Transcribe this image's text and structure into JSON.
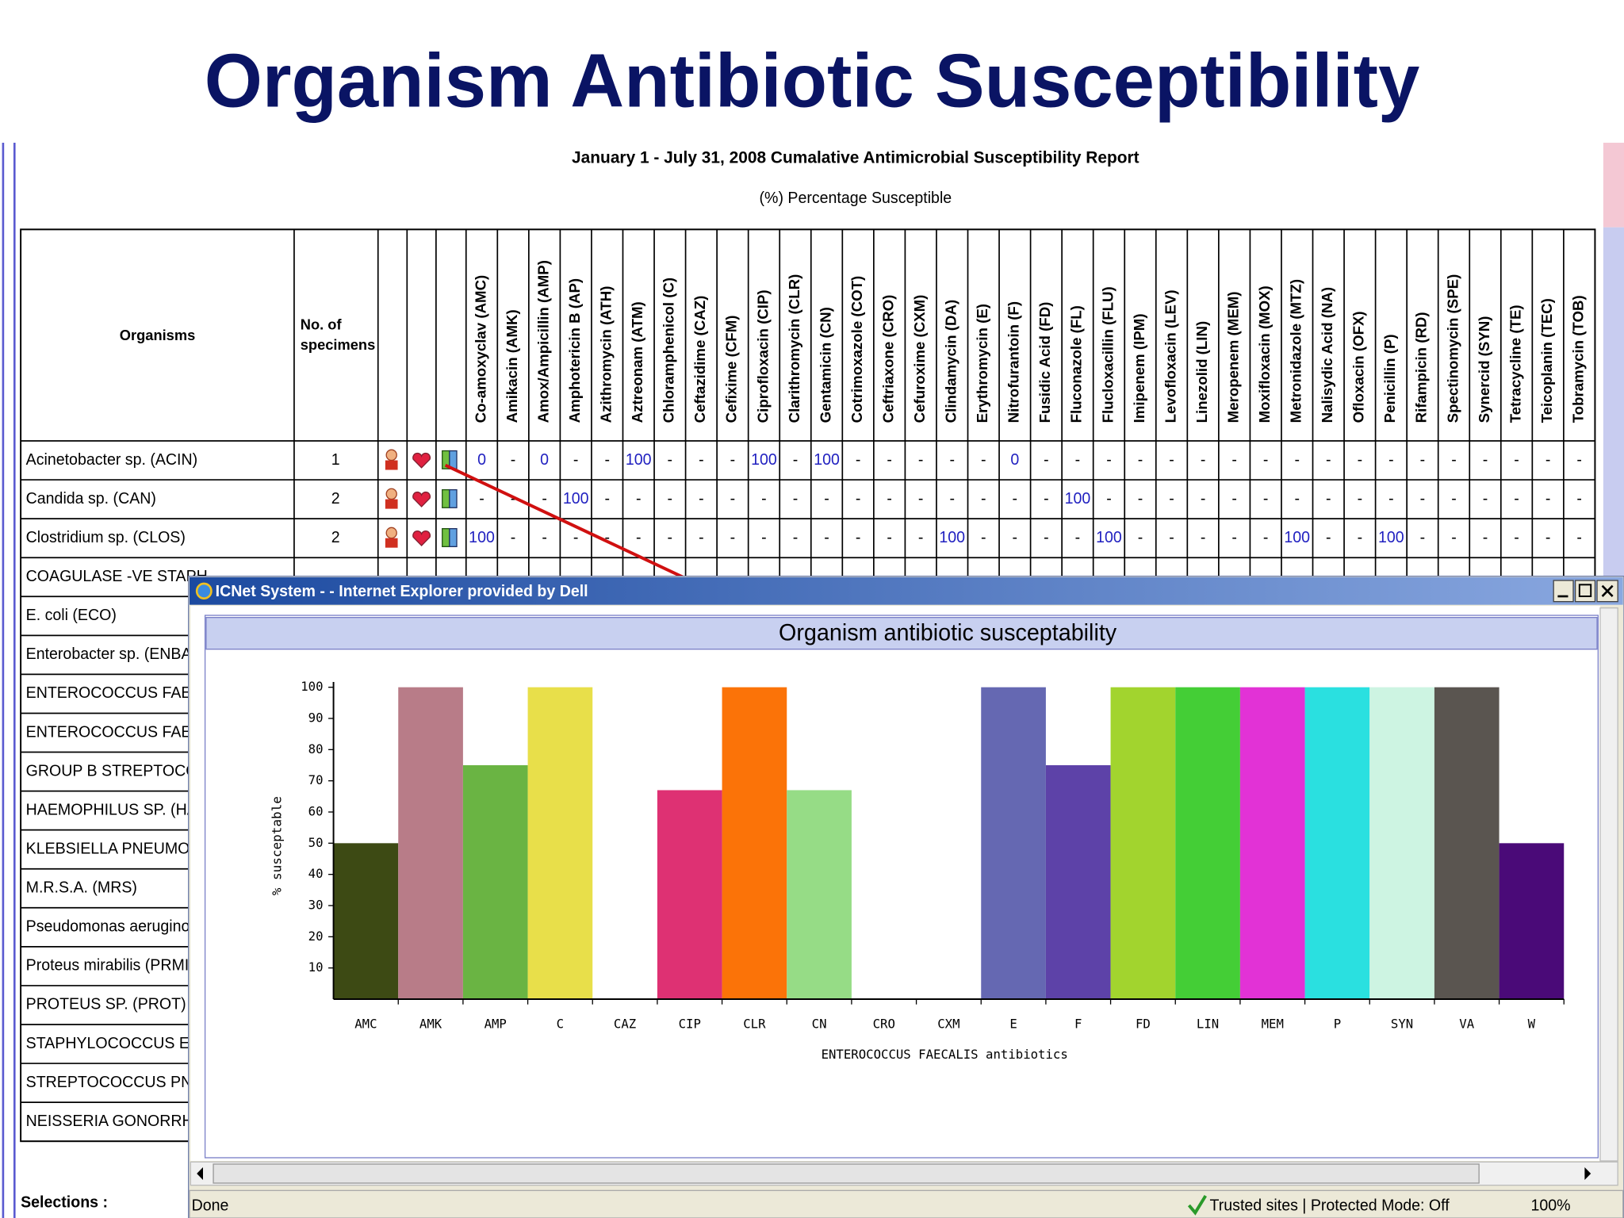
{
  "slide_title": "Organism Antibiotic Susceptibility",
  "report": {
    "title": "January 1 - July 31, 2008 Cumalative Antimicrobial Susceptibility Report",
    "subtitle": "(%) Percentage Susceptible",
    "table": {
      "organisms_header": "Organisms",
      "specimens_header": [
        "No. of",
        "specimens"
      ],
      "antibiotics": [
        "Co-amoxyclav (AMC)",
        "Amikacin (AMK)",
        "Amox/Ampicillin (AMP)",
        "Amphotericin B (AP)",
        "Azithromycin (ATH)",
        "Aztreonam (ATM)",
        "Chloramphenicol (C)",
        "Ceftazidime (CAZ)",
        "Cefixime (CFM)",
        "Ciprofloxacin (CIP)",
        "Clarithromycin (CLR)",
        "Gentamicin (CN)",
        "Cotrimoxazole (COT)",
        "Ceftriaxone (CRO)",
        "Cefuroxime (CXM)",
        "Clindamycin (DA)",
        "Erythromycin (E)",
        "Nitrofurantoin (F)",
        "Fusidic Acid (FD)",
        "Fluconazole (FL)",
        "Flucloxacillin (FLU)",
        "Imipenem (IPM)",
        "Levofloxacin (LEV)",
        "Linezolid (LIN)",
        "Meropenem (MEM)",
        "Moxifloxacin (MOX)",
        "Metronidazole (MTZ)",
        "Nalisydic Acid (NA)",
        "Ofloxacin (OFX)",
        "Penicillin (P)",
        "Rifampicin (RD)",
        "Spectinomycin (SPE)",
        "Synercid (SYN)",
        "Tetracycline (TE)",
        "Teicoplanin (TEC)",
        "Tobramycin (TOB)"
      ],
      "rows": [
        {
          "organism": "Acinetobacter sp. (ACIN)",
          "specimens": 1,
          "values": [
            0,
            "-",
            0,
            "-",
            "-",
            100,
            "-",
            "-",
            "-",
            100,
            "-",
            100,
            "-",
            "-",
            "-",
            "-",
            "-",
            0,
            "-",
            "-",
            "-",
            "-",
            "-",
            "-",
            "-",
            "-",
            "-",
            "-",
            "-",
            "-",
            "-",
            "-",
            "-",
            "-",
            "-",
            "-"
          ]
        },
        {
          "organism": "Candida sp. (CAN)",
          "specimens": 2,
          "values": [
            "-",
            "-",
            "-",
            100,
            "-",
            "-",
            "-",
            "-",
            "-",
            "-",
            "-",
            "-",
            "-",
            "-",
            "-",
            "-",
            "-",
            "-",
            "-",
            100,
            "-",
            "-",
            "-",
            "-",
            "-",
            "-",
            "-",
            "-",
            "-",
            "-",
            "-",
            "-",
            "-",
            "-",
            "-",
            "-"
          ]
        },
        {
          "organism": "Clostridium sp. (CLOS)",
          "specimens": 2,
          "values": [
            100,
            "-",
            "-",
            "-",
            "-",
            "-",
            "-",
            "-",
            "-",
            "-",
            "-",
            "-",
            "-",
            "-",
            "-",
            100,
            "-",
            "-",
            "-",
            "-",
            100,
            "-",
            "-",
            "-",
            "-",
            "-",
            100,
            "-",
            "-",
            100,
            "-",
            "-",
            "-",
            "-",
            "-",
            "-"
          ]
        },
        {
          "organism": "COAGULASE -VE STAPH"
        },
        {
          "organism": "E. coli (ECO)"
        },
        {
          "organism": "Enterobacter sp. (ENBA)"
        },
        {
          "organism": "ENTEROCOCCUS FAECA"
        },
        {
          "organism": "ENTEROCOCCUS FAECI"
        },
        {
          "organism": "GROUP B STREPTOCOC"
        },
        {
          "organism": "HAEMOPHILUS SP. (HAE"
        },
        {
          "organism": "KLEBSIELLA PNEUMONI"
        },
        {
          "organism": "M.R.S.A. (MRS)"
        },
        {
          "organism": "Pseudomonas aeruginosa"
        },
        {
          "organism": "Proteus mirabilis (PRMI)"
        },
        {
          "organism": "PROTEUS SP. (PROT)"
        },
        {
          "organism": "STAPHYLOCOCCUS EPID"
        },
        {
          "organism": "STREPTOCOCCUS PNEU"
        },
        {
          "organism": "NEISSERIA GONORRHO"
        }
      ]
    },
    "selections_label": "Selections :"
  },
  "window": {
    "title": "ICNet System - - Internet Explorer provided by Dell",
    "status": {
      "left": "Done",
      "zone": "Trusted sites | Protected Mode: Off",
      "zoom": "100%"
    }
  },
  "chart_data": {
    "type": "bar",
    "title": "Organism antibiotic susceptability",
    "x_label": "ENTEROCOCCUS FAECALIS antibiotics",
    "y_label": "% susceptable",
    "categories": [
      "AMC",
      "AMK",
      "AMP",
      "C",
      "CAZ",
      "CIP",
      "CLR",
      "CN",
      "CRO",
      "CXM",
      "E",
      "F",
      "FD",
      "LIN",
      "MEM",
      "P",
      "SYN",
      "VA",
      "W"
    ],
    "values": [
      50,
      100,
      75,
      100,
      0,
      67,
      100,
      67,
      0,
      0,
      100,
      75,
      100,
      100,
      100,
      100,
      100,
      100,
      50
    ],
    "colors": [
      "#3d4a14",
      "#b87c88",
      "#6ab443",
      "#e8df4a",
      null,
      "#de3173",
      "#fb7308",
      "#96dc86",
      null,
      null,
      "#6568b2",
      "#5d42a8",
      "#a2d42e",
      "#44ce36",
      "#e232d6",
      "#2ae0e0",
      "#cdf4e2",
      "#5a5550",
      "#4a0a78"
    ],
    "ylim": [
      0,
      100
    ],
    "yticks": [
      10,
      20,
      30,
      40,
      50,
      60,
      70,
      80,
      90,
      100
    ],
    "grid": false
  }
}
